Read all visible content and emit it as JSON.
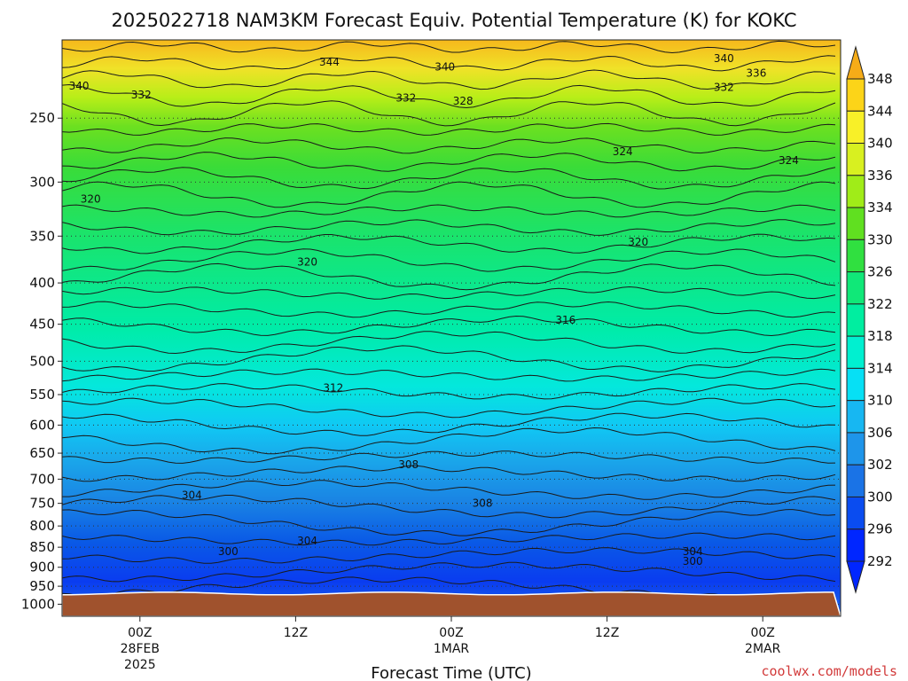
{
  "title": "2025022718 NAM3KM Forecast Equiv. Potential Temperature (K) for KOKC",
  "credit": "coolwx.com/models",
  "chart_data": {
    "type": "heatmap",
    "title": "2025022718 NAM3KM Forecast Equiv. Potential Temperature (K) for KOKC",
    "xlabel": "Forecast Time (UTC)",
    "ylabel": "",
    "x_range_hours": [
      -6,
      54
    ],
    "x_ticks": [
      {
        "hour": 0,
        "lines": [
          "00Z",
          "28FEB",
          "2025"
        ]
      },
      {
        "hour": 12,
        "lines": [
          "12Z"
        ]
      },
      {
        "hour": 24,
        "lines": [
          "00Z",
          "1MAR"
        ]
      },
      {
        "hour": 36,
        "lines": [
          "12Z"
        ]
      },
      {
        "hour": 48,
        "lines": [
          "00Z",
          "2MAR"
        ]
      }
    ],
    "y_axis": {
      "scale": "log",
      "ylim": [
        1035,
        200
      ],
      "unit": "hPa",
      "ticks": [
        250,
        300,
        350,
        400,
        450,
        500,
        550,
        600,
        650,
        700,
        750,
        800,
        850,
        900,
        950,
        1000
      ]
    },
    "grid": "dotted horizontal",
    "colorbar": {
      "levels": [
        292,
        296,
        300,
        302,
        306,
        310,
        314,
        318,
        322,
        326,
        330,
        334,
        336,
        340,
        344,
        348
      ],
      "colors": [
        "#0026ff",
        "#0a4cf0",
        "#1a73e6",
        "#1e95ea",
        "#17b7f2",
        "#06e0f5",
        "#00f0d0",
        "#00eea0",
        "#10e878",
        "#30e040",
        "#60e020",
        "#a0ec18",
        "#d8f020",
        "#f8f028",
        "#fcd418",
        "#f6ac18"
      ],
      "placement": "right"
    },
    "contour_labels": [
      {
        "value": 344,
        "hour": 14.6,
        "hpa": 213
      },
      {
        "value": 340,
        "hour": 23.5,
        "hpa": 216
      },
      {
        "value": 340,
        "hour": 45,
        "hpa": 211
      },
      {
        "value": 336,
        "hour": 47.5,
        "hpa": 220
      },
      {
        "value": 340,
        "hour": -4.7,
        "hpa": 228
      },
      {
        "value": 332,
        "hour": 0.1,
        "hpa": 234
      },
      {
        "value": 332,
        "hour": 20.5,
        "hpa": 236
      },
      {
        "value": 328,
        "hour": 24.9,
        "hpa": 238
      },
      {
        "value": 332,
        "hour": 45,
        "hpa": 229
      },
      {
        "value": 324,
        "hour": 37.2,
        "hpa": 275
      },
      {
        "value": 324,
        "hour": 50,
        "hpa": 282
      },
      {
        "value": 320,
        "hour": -3.8,
        "hpa": 315
      },
      {
        "value": 320,
        "hour": 12.9,
        "hpa": 377
      },
      {
        "value": 320,
        "hour": 38.4,
        "hpa": 356
      },
      {
        "value": 316,
        "hour": 32.8,
        "hpa": 445
      },
      {
        "value": 312,
        "hour": 14.9,
        "hpa": 540
      },
      {
        "value": 308,
        "hour": 20.7,
        "hpa": 672
      },
      {
        "value": 308,
        "hour": 26.4,
        "hpa": 750
      },
      {
        "value": 304,
        "hour": 4,
        "hpa": 733
      },
      {
        "value": 304,
        "hour": 12.9,
        "hpa": 835
      },
      {
        "value": 304,
        "hour": 42.6,
        "hpa": 860
      },
      {
        "value": 300,
        "hour": 6.8,
        "hpa": 860
      },
      {
        "value": 300,
        "hour": 42.6,
        "hpa": 885
      }
    ],
    "surface": {
      "color": "#a0522d",
      "hpa": 970
    }
  }
}
